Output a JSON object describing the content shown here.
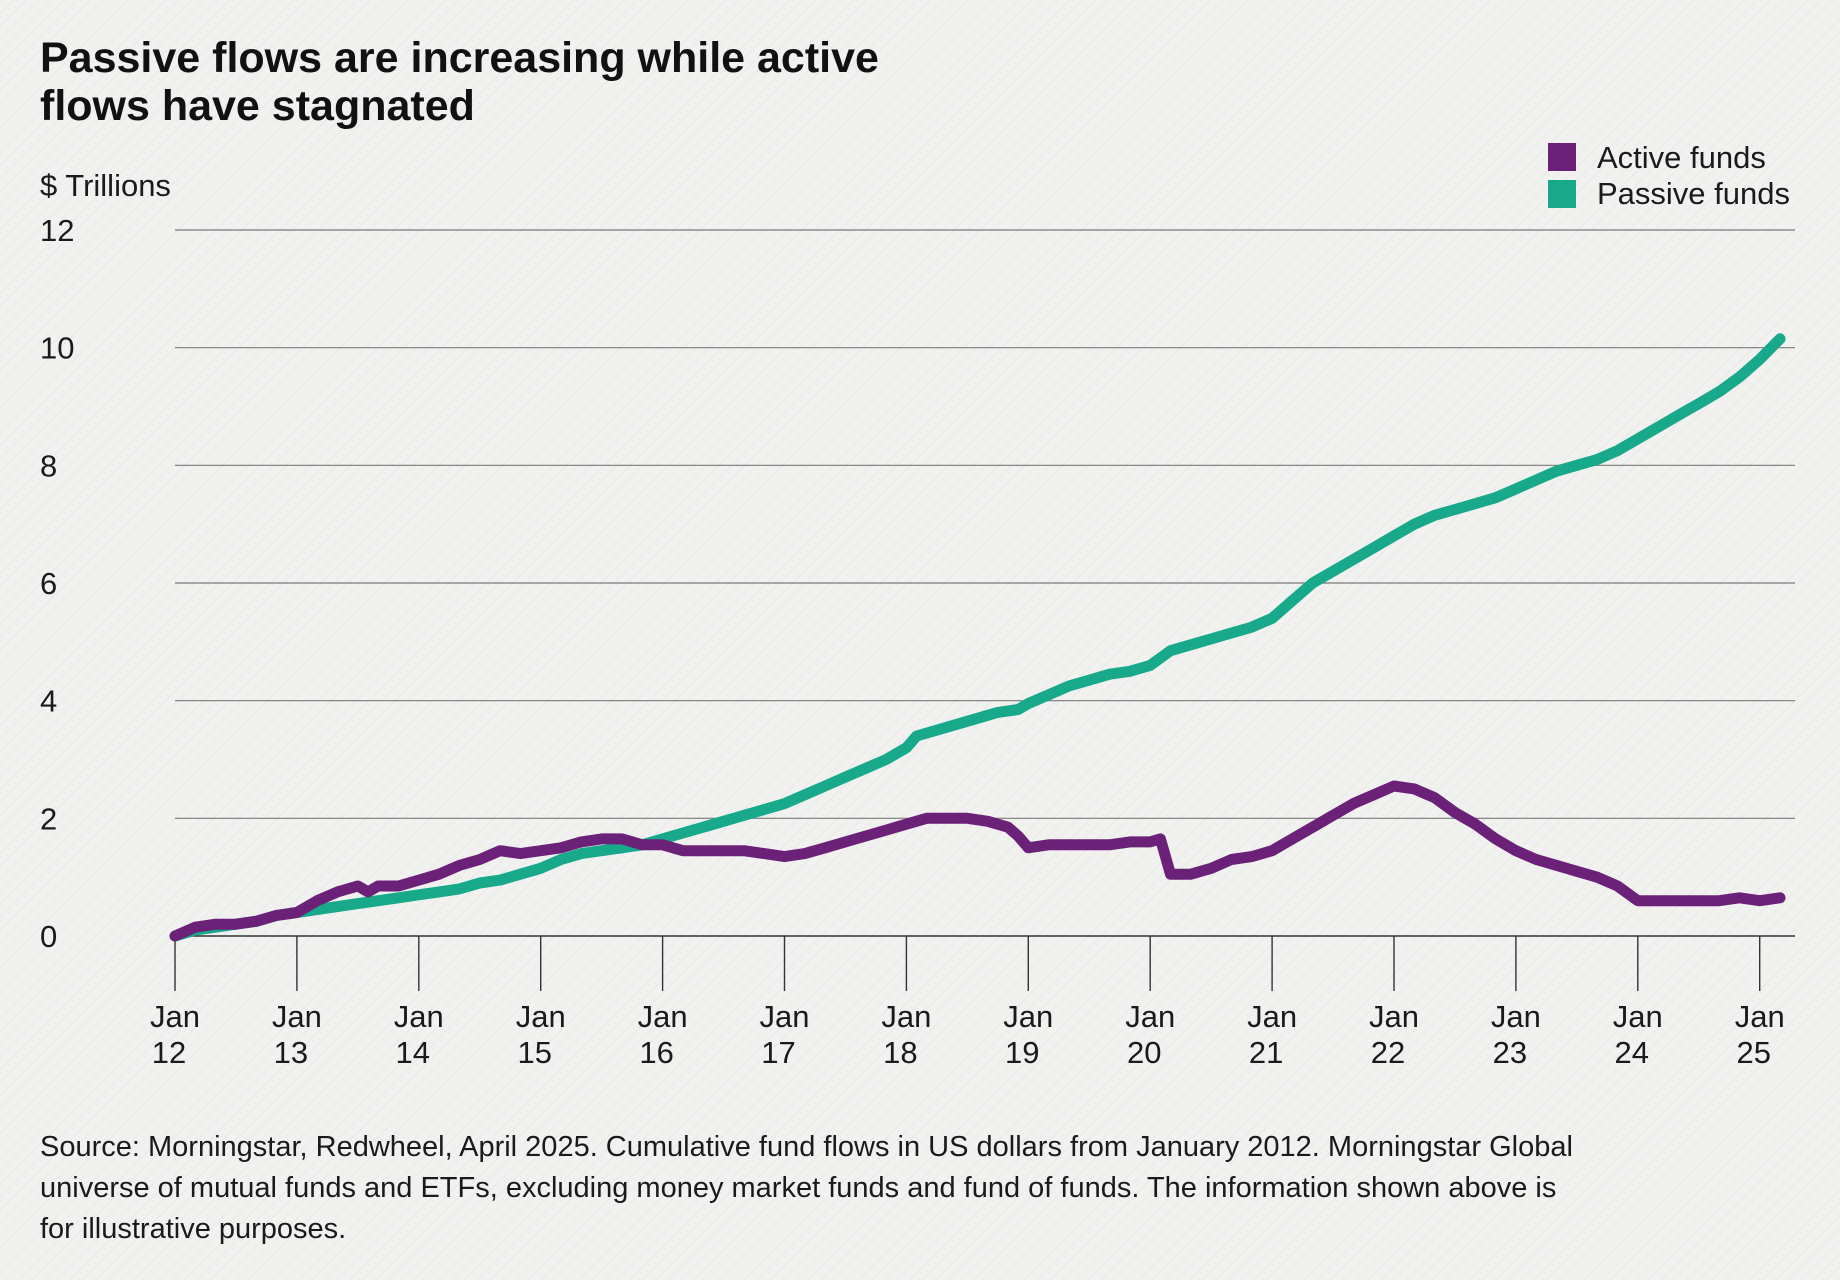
{
  "chart_data": {
    "type": "line",
    "title_lines": [
      "Passive flows are increasing while active",
      "flows have stagnated"
    ],
    "ylabel": "$ Trillions",
    "ylim": [
      0,
      12
    ],
    "yticks": [
      "0",
      "2",
      "4",
      "6",
      "8",
      "10",
      "12"
    ],
    "xlabel": "",
    "x_start": "2012-01",
    "x_end": "2025-03",
    "xticks": [
      {
        "date": "2012-01",
        "line1": "Jan",
        "line2": "12"
      },
      {
        "date": "2013-01",
        "line1": "Jan",
        "line2": "13"
      },
      {
        "date": "2014-01",
        "line1": "Jan",
        "line2": "14"
      },
      {
        "date": "2015-01",
        "line1": "Jan",
        "line2": "15"
      },
      {
        "date": "2016-01",
        "line1": "Jan",
        "line2": "16"
      },
      {
        "date": "2017-01",
        "line1": "Jan",
        "line2": "17"
      },
      {
        "date": "2018-01",
        "line1": "Jan",
        "line2": "18"
      },
      {
        "date": "2019-01",
        "line1": "Jan",
        "line2": "19"
      },
      {
        "date": "2020-01",
        "line1": "Jan",
        "line2": "20"
      },
      {
        "date": "2021-01",
        "line1": "Jan",
        "line2": "21"
      },
      {
        "date": "2022-01",
        "line1": "Jan",
        "line2": "22"
      },
      {
        "date": "2023-01",
        "line1": "Jan",
        "line2": "23"
      },
      {
        "date": "2024-01",
        "line1": "Jan",
        "line2": "24"
      },
      {
        "date": "2025-01",
        "line1": "Jan",
        "line2": "25"
      }
    ],
    "grid": true,
    "legend_position": "top-right",
    "series": [
      {
        "name": "Active funds",
        "color": "#6b2177",
        "points": [
          [
            "2012-01",
            0.0
          ],
          [
            "2012-03",
            0.15
          ],
          [
            "2012-05",
            0.2
          ],
          [
            "2012-07",
            0.2
          ],
          [
            "2012-09",
            0.25
          ],
          [
            "2012-11",
            0.35
          ],
          [
            "2013-01",
            0.4
          ],
          [
            "2013-03",
            0.6
          ],
          [
            "2013-05",
            0.75
          ],
          [
            "2013-07",
            0.85
          ],
          [
            "2013-08",
            0.75
          ],
          [
            "2013-09",
            0.85
          ],
          [
            "2013-11",
            0.85
          ],
          [
            "2014-01",
            0.95
          ],
          [
            "2014-03",
            1.05
          ],
          [
            "2014-05",
            1.2
          ],
          [
            "2014-07",
            1.3
          ],
          [
            "2014-09",
            1.45
          ],
          [
            "2014-11",
            1.4
          ],
          [
            "2015-01",
            1.45
          ],
          [
            "2015-03",
            1.5
          ],
          [
            "2015-05",
            1.6
          ],
          [
            "2015-07",
            1.65
          ],
          [
            "2015-09",
            1.65
          ],
          [
            "2015-11",
            1.55
          ],
          [
            "2016-01",
            1.55
          ],
          [
            "2016-03",
            1.45
          ],
          [
            "2016-05",
            1.45
          ],
          [
            "2016-07",
            1.45
          ],
          [
            "2016-09",
            1.45
          ],
          [
            "2016-11",
            1.4
          ],
          [
            "2017-01",
            1.35
          ],
          [
            "2017-03",
            1.4
          ],
          [
            "2017-05",
            1.5
          ],
          [
            "2017-07",
            1.6
          ],
          [
            "2017-09",
            1.7
          ],
          [
            "2017-11",
            1.8
          ],
          [
            "2018-01",
            1.9
          ],
          [
            "2018-03",
            2.0
          ],
          [
            "2018-05",
            2.0
          ],
          [
            "2018-07",
            2.0
          ],
          [
            "2018-09",
            1.95
          ],
          [
            "2018-11",
            1.85
          ],
          [
            "2018-12",
            1.7
          ],
          [
            "2019-01",
            1.5
          ],
          [
            "2019-03",
            1.55
          ],
          [
            "2019-05",
            1.55
          ],
          [
            "2019-07",
            1.55
          ],
          [
            "2019-09",
            1.55
          ],
          [
            "2019-11",
            1.6
          ],
          [
            "2020-01",
            1.6
          ],
          [
            "2020-02",
            1.65
          ],
          [
            "2020-03",
            1.05
          ],
          [
            "2020-05",
            1.05
          ],
          [
            "2020-07",
            1.15
          ],
          [
            "2020-09",
            1.3
          ],
          [
            "2020-11",
            1.35
          ],
          [
            "2021-01",
            1.45
          ],
          [
            "2021-03",
            1.65
          ],
          [
            "2021-05",
            1.85
          ],
          [
            "2021-07",
            2.05
          ],
          [
            "2021-09",
            2.25
          ],
          [
            "2021-11",
            2.4
          ],
          [
            "2022-01",
            2.55
          ],
          [
            "2022-03",
            2.5
          ],
          [
            "2022-05",
            2.35
          ],
          [
            "2022-07",
            2.1
          ],
          [
            "2022-09",
            1.9
          ],
          [
            "2022-11",
            1.65
          ],
          [
            "2023-01",
            1.45
          ],
          [
            "2023-03",
            1.3
          ],
          [
            "2023-05",
            1.2
          ],
          [
            "2023-07",
            1.1
          ],
          [
            "2023-09",
            1.0
          ],
          [
            "2023-11",
            0.85
          ],
          [
            "2024-01",
            0.6
          ],
          [
            "2024-03",
            0.6
          ],
          [
            "2024-05",
            0.6
          ],
          [
            "2024-07",
            0.6
          ],
          [
            "2024-09",
            0.6
          ],
          [
            "2024-11",
            0.65
          ],
          [
            "2025-01",
            0.6
          ],
          [
            "2025-03",
            0.65
          ]
        ]
      },
      {
        "name": "Passive funds",
        "color": "#17a98a",
        "points": [
          [
            "2012-01",
            0.0
          ],
          [
            "2012-03",
            0.1
          ],
          [
            "2012-05",
            0.15
          ],
          [
            "2012-07",
            0.2
          ],
          [
            "2012-09",
            0.25
          ],
          [
            "2012-11",
            0.35
          ],
          [
            "2013-01",
            0.4
          ],
          [
            "2013-03",
            0.45
          ],
          [
            "2013-05",
            0.5
          ],
          [
            "2013-07",
            0.55
          ],
          [
            "2013-09",
            0.6
          ],
          [
            "2013-11",
            0.65
          ],
          [
            "2014-01",
            0.7
          ],
          [
            "2014-03",
            0.75
          ],
          [
            "2014-05",
            0.8
          ],
          [
            "2014-07",
            0.9
          ],
          [
            "2014-09",
            0.95
          ],
          [
            "2014-11",
            1.05
          ],
          [
            "2015-01",
            1.15
          ],
          [
            "2015-03",
            1.3
          ],
          [
            "2015-05",
            1.4
          ],
          [
            "2015-07",
            1.45
          ],
          [
            "2015-09",
            1.5
          ],
          [
            "2015-11",
            1.55
          ],
          [
            "2016-01",
            1.65
          ],
          [
            "2016-03",
            1.75
          ],
          [
            "2016-05",
            1.85
          ],
          [
            "2016-07",
            1.95
          ],
          [
            "2016-09",
            2.05
          ],
          [
            "2016-11",
            2.15
          ],
          [
            "2017-01",
            2.25
          ],
          [
            "2017-03",
            2.4
          ],
          [
            "2017-05",
            2.55
          ],
          [
            "2017-07",
            2.7
          ],
          [
            "2017-09",
            2.85
          ],
          [
            "2017-11",
            3.0
          ],
          [
            "2018-01",
            3.2
          ],
          [
            "2018-02",
            3.4
          ],
          [
            "2018-04",
            3.5
          ],
          [
            "2018-06",
            3.6
          ],
          [
            "2018-08",
            3.7
          ],
          [
            "2018-10",
            3.8
          ],
          [
            "2018-12",
            3.85
          ],
          [
            "2019-01",
            3.95
          ],
          [
            "2019-03",
            4.1
          ],
          [
            "2019-05",
            4.25
          ],
          [
            "2019-07",
            4.35
          ],
          [
            "2019-09",
            4.45
          ],
          [
            "2019-11",
            4.5
          ],
          [
            "2020-01",
            4.6
          ],
          [
            "2020-03",
            4.85
          ],
          [
            "2020-05",
            4.95
          ],
          [
            "2020-07",
            5.05
          ],
          [
            "2020-09",
            5.15
          ],
          [
            "2020-11",
            5.25
          ],
          [
            "2021-01",
            5.4
          ],
          [
            "2021-03",
            5.7
          ],
          [
            "2021-05",
            6.0
          ],
          [
            "2021-07",
            6.2
          ],
          [
            "2021-09",
            6.4
          ],
          [
            "2021-11",
            6.6
          ],
          [
            "2022-01",
            6.8
          ],
          [
            "2022-03",
            7.0
          ],
          [
            "2022-05",
            7.15
          ],
          [
            "2022-07",
            7.25
          ],
          [
            "2022-09",
            7.35
          ],
          [
            "2022-11",
            7.45
          ],
          [
            "2023-01",
            7.6
          ],
          [
            "2023-03",
            7.75
          ],
          [
            "2023-05",
            7.9
          ],
          [
            "2023-07",
            8.0
          ],
          [
            "2023-09",
            8.1
          ],
          [
            "2023-11",
            8.25
          ],
          [
            "2024-01",
            8.45
          ],
          [
            "2024-03",
            8.65
          ],
          [
            "2024-05",
            8.85
          ],
          [
            "2024-07",
            9.05
          ],
          [
            "2024-09",
            9.25
          ],
          [
            "2024-11",
            9.5
          ],
          [
            "2025-01",
            9.8
          ],
          [
            "2025-03",
            10.15
          ]
        ]
      }
    ],
    "source_lines": [
      "Source: Morningstar, Redwheel, April 2025. Cumulative fund flows in US dollars from January 2012. Morningstar Global",
      "universe of mutual funds and ETFs, excluding money market funds and fund of funds. The information shown above is",
      "for illustrative purposes."
    ]
  }
}
